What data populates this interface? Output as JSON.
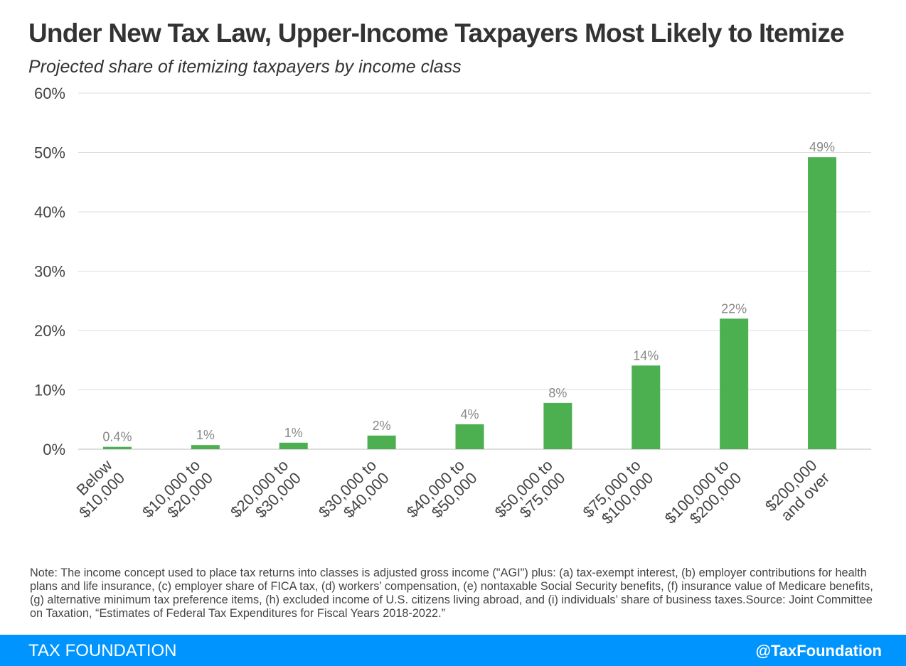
{
  "chart_data": {
    "type": "bar",
    "title": "Under New Tax Law, Upper-Income Taxpayers Most Likely to Itemize",
    "subtitle": "Projected share of itemizing taxpayers by income class",
    "xlabel": "",
    "ylabel": "",
    "categories": [
      [
        "Below",
        "$10,000"
      ],
      [
        "$10,000 to",
        "$20,000"
      ],
      [
        "$20,000 to",
        "$30,000"
      ],
      [
        "$30,000 to",
        "$40,000"
      ],
      [
        "$40,000 to",
        "$50,000"
      ],
      [
        "$50,000 to",
        "$75,000"
      ],
      [
        "$75,000 to",
        "$100,000"
      ],
      [
        "$100,000 to",
        "$200,000"
      ],
      [
        "$200,000",
        "and over"
      ]
    ],
    "values": [
      0.4,
      0.7,
      1.1,
      2.3,
      4.2,
      7.8,
      14.1,
      22.0,
      49.2
    ],
    "data_labels": [
      "0.4%",
      "1%",
      "1%",
      "2%",
      "4%",
      "8%",
      "14%",
      "22%",
      "49%"
    ],
    "ylim": [
      0,
      60
    ],
    "yticks": [
      0,
      10,
      20,
      30,
      40,
      50,
      60
    ],
    "ytick_labels": [
      "0%",
      "10%",
      "20%",
      "30%",
      "40%",
      "50%",
      "60%"
    ],
    "grid": true,
    "colors": {
      "bar": "#4caf50",
      "grid": "#dddddd",
      "data_label": "#888888"
    }
  },
  "note": "Note: The income concept used to place tax returns into classes is adjusted gross income (\"AGI\") plus:  (a) tax-exempt interest, (b) employer contributions for health plans and life insurance, (c) employer share of FICA tax, (d) workers’ compensation, (e) nontaxable Social Security benefits, (f) insurance value of Medicare benefits, (g) alternative minimum tax preference items, (h) excluded income of U.S. citizens living abroad, and (i) individuals’ share of business taxes.Source: Joint Committee on Taxation, “Estimates of Federal Tax Expenditures for Fiscal Years 2018-2022.”",
  "footer": {
    "brand": "TAX FOUNDATION",
    "handle": "@TaxFoundation",
    "color": "#0094ff"
  }
}
